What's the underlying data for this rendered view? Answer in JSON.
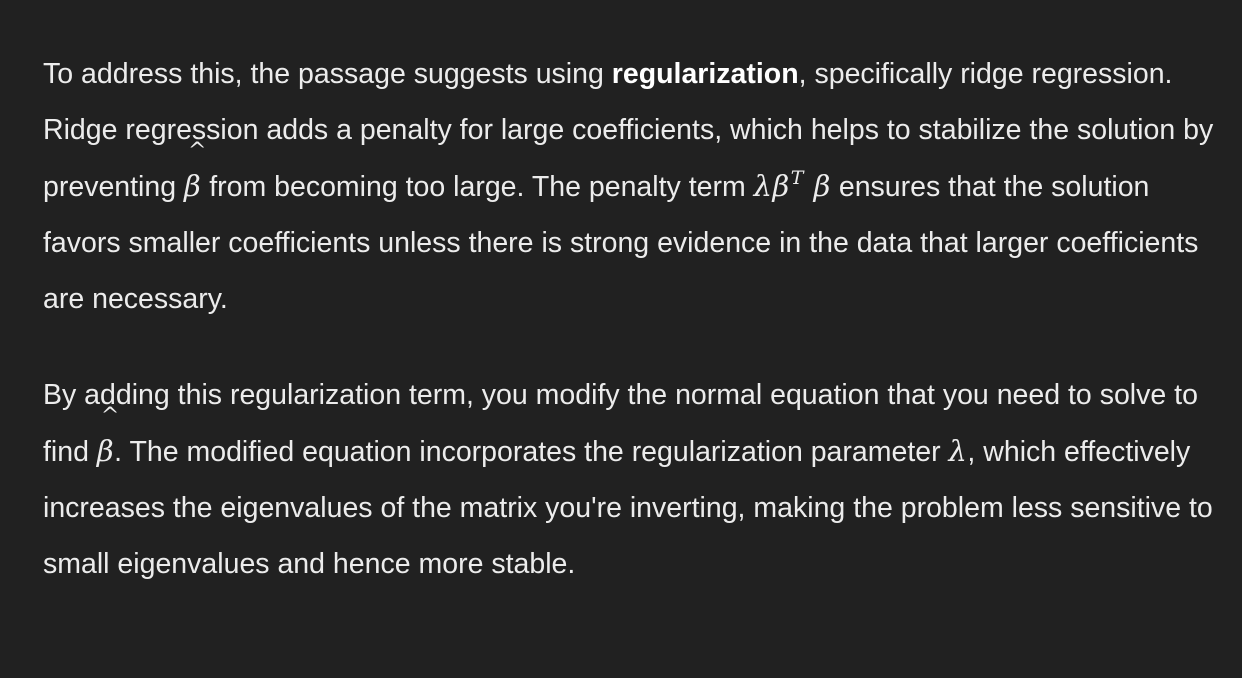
{
  "document": {
    "paragraph_1": {
      "seg_1": "To address this, the passage suggests using ",
      "bold": "regularization",
      "seg_2": ", specifically ridge regression. Ridge regression adds a penalty for large coefficients, which helps to stabilize the solution by preventing ",
      "beta_hat": "β",
      "hat_mark": "^",
      "seg_3": " from becoming too large. The penalty term ",
      "penalty_lambda_beta": "λβ",
      "penalty_sup": "T",
      "penalty_beta": "β",
      "seg_4": " ensures that the solution favors smaller coefficients unless there is strong evidence in the data that larger coefficients are necessary."
    },
    "paragraph_2": {
      "seg_1": "By adding this regularization term, you modify the normal equation that you need to solve to find ",
      "beta_hat": "β",
      "hat_mark": "^",
      "seg_2": ". The modified equation incorporates the regularization parameter ",
      "lambda": "λ",
      "seg_3": ", which effectively increases the eigenvalues of the matrix you're inverting, making the problem less sensitive to small eigenvalues and hence more stable."
    }
  }
}
